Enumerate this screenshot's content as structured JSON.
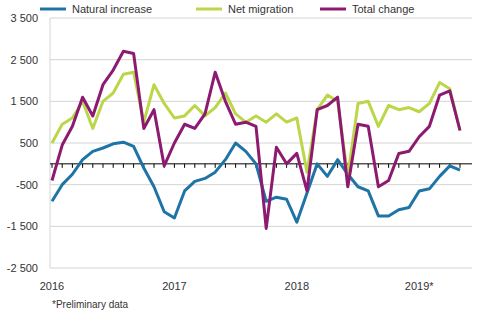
{
  "chart_data": {
    "type": "line",
    "categories": [
      "2016",
      null,
      null,
      null,
      null,
      null,
      null,
      null,
      null,
      null,
      null,
      null,
      "2017",
      null,
      null,
      null,
      null,
      null,
      null,
      null,
      null,
      null,
      null,
      null,
      "2018",
      null,
      null,
      null,
      null,
      null,
      null,
      null,
      null,
      null,
      null,
      null,
      "2019*",
      null,
      null,
      null,
      null
    ],
    "series": [
      {
        "name": "Natural increase",
        "color": "#1f74a6",
        "values": [
          -900,
          -500,
          -250,
          100,
          300,
          380,
          480,
          520,
          420,
          -100,
          -550,
          -1150,
          -1300,
          -650,
          -420,
          -350,
          -200,
          100,
          500,
          300,
          0,
          -900,
          -800,
          -850,
          -1400,
          -700,
          0,
          -300,
          100,
          -250,
          -550,
          -650,
          -1250,
          -1250,
          -1100,
          -1050,
          -650,
          -600,
          -300,
          -50,
          -150
        ]
      },
      {
        "name": "Net migration",
        "color": "#bcd64a",
        "values": [
          500,
          950,
          1100,
          1500,
          850,
          1500,
          1700,
          2150,
          2200,
          1000,
          1900,
          1450,
          1100,
          1150,
          1400,
          1150,
          1350,
          1700,
          1200,
          1000,
          1150,
          1000,
          1200,
          1000,
          1100,
          -200,
          1300,
          1650,
          1500,
          -300,
          1450,
          1500,
          900,
          1400,
          1300,
          1350,
          1250,
          1450,
          1950,
          1800,
          800
        ]
      },
      {
        "name": "Total change",
        "color": "#8c1a70",
        "values": [
          -400,
          450,
          900,
          1600,
          1150,
          1900,
          2250,
          2700,
          2650,
          850,
          1300,
          -50,
          500,
          950,
          850,
          1200,
          2200,
          1500,
          950,
          1000,
          900,
          -1550,
          400,
          0,
          250,
          -650,
          1300,
          1400,
          1600,
          -550,
          950,
          900,
          -550,
          -400,
          250,
          300,
          650,
          900,
          1650,
          1750,
          800
        ]
      }
    ],
    "ylim": [
      -2500,
      3500
    ],
    "yticks": [
      {
        "value": 3500,
        "label": "3 500"
      },
      {
        "value": 2500,
        "label": "2 500"
      },
      {
        "value": 1500,
        "label": "1 500"
      },
      500,
      -500,
      {
        "value": -1500,
        "label": "-1 500"
      },
      {
        "value": -2500,
        "label": "-2 500"
      }
    ],
    "grid": true,
    "legend": "top",
    "note": "*Preliminary data"
  }
}
